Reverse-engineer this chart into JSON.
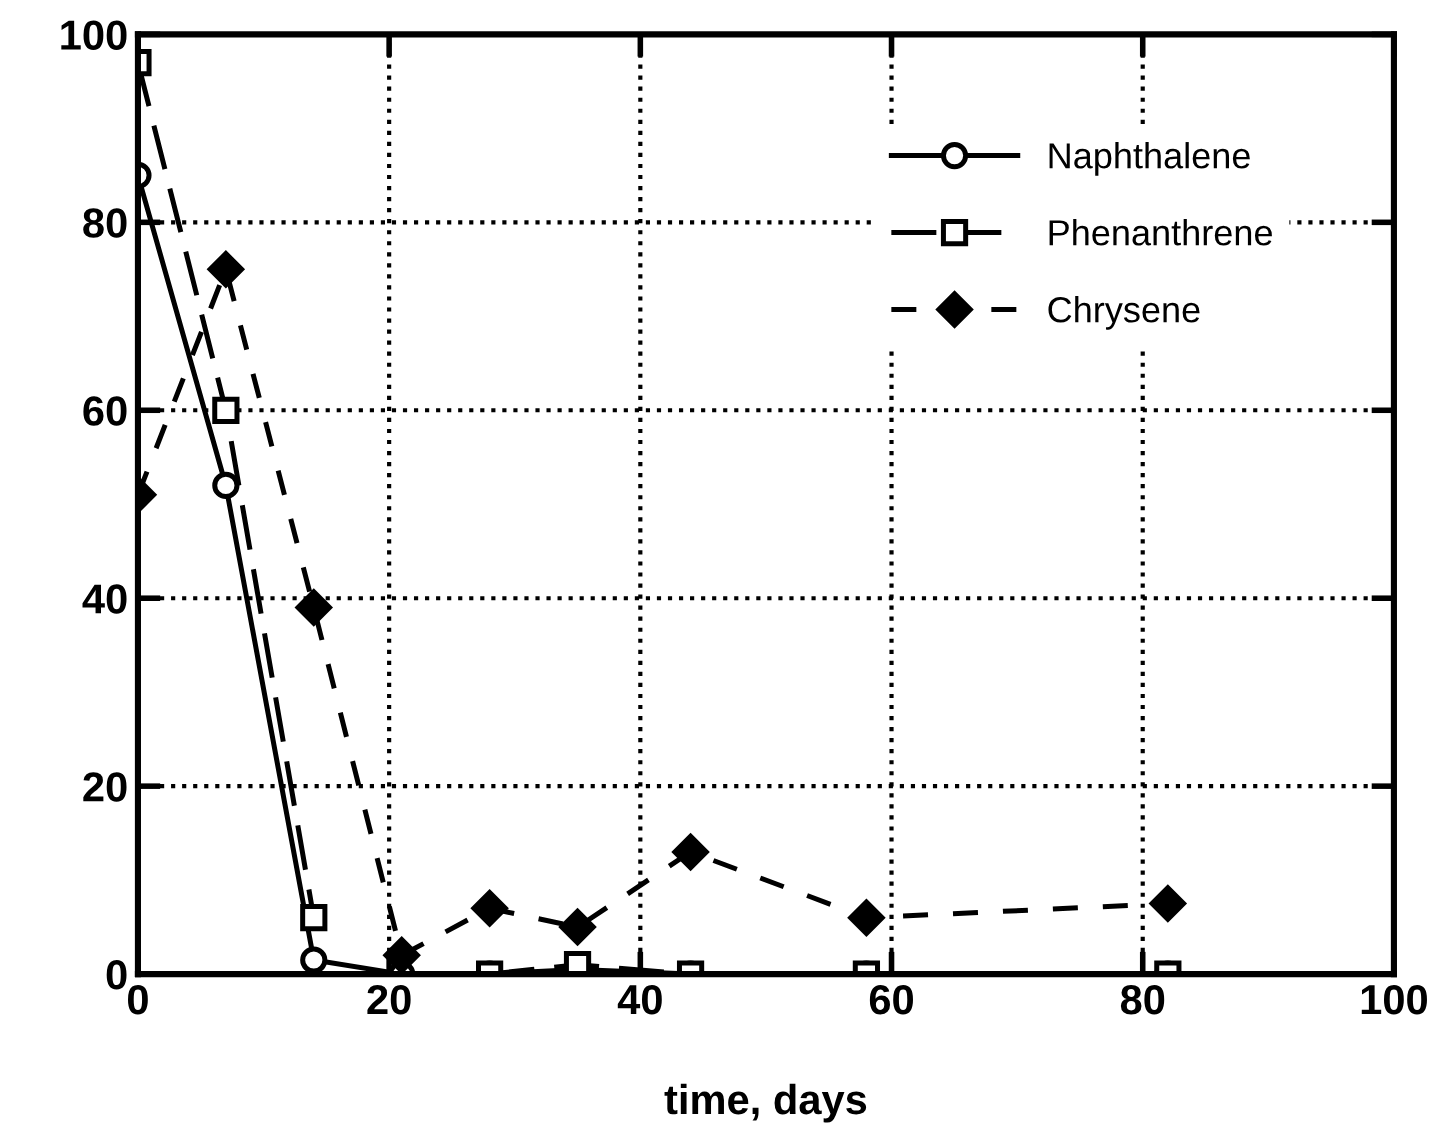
{
  "chart_data": {
    "type": "line",
    "xlabel": "time, days",
    "xlim": [
      0,
      100
    ],
    "xticks": [
      0,
      20,
      40,
      60,
      80,
      100
    ],
    "ylim": [
      0,
      100
    ],
    "yticks": [
      0,
      20,
      40,
      60,
      80,
      100
    ],
    "grid": true,
    "legend": "top right",
    "series": [
      {
        "name": "Naphthalene",
        "color": "#000000",
        "marker": "circle",
        "line_style": "solid",
        "x": [
          0,
          7,
          14,
          21,
          28,
          35,
          44,
          58,
          82
        ],
        "values": [
          85,
          52,
          1.5,
          0,
          0,
          0.5,
          0,
          0,
          0
        ]
      },
      {
        "name": "Phenanthrene",
        "color": "#000000",
        "marker": "square",
        "line_style": "dashed",
        "x": [
          0,
          7,
          14,
          21,
          28,
          35,
          44,
          58,
          82
        ],
        "values": [
          97,
          60,
          6,
          null,
          0,
          1,
          0,
          0,
          0
        ]
      },
      {
        "name": "Chrysene",
        "color": "#000000",
        "marker": "diamond",
        "line_style": "dotted",
        "x": [
          0,
          7,
          14,
          21,
          28,
          35,
          44,
          58,
          82
        ],
        "values": [
          51,
          75,
          39,
          2,
          7,
          5,
          13,
          6,
          7.5
        ]
      }
    ]
  }
}
